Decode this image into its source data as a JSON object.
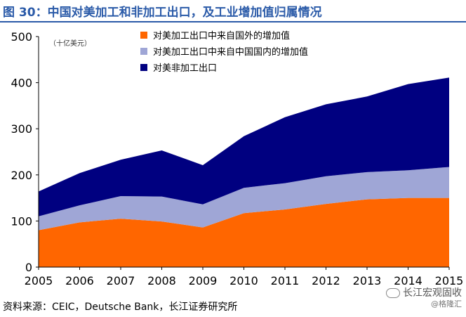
{
  "page": {
    "title": "图 30：中国对美加工和非加工出口，及工业增加值归属情况",
    "source": "资料来源：CEIC，Deutsche Bank，长江证券研究所",
    "watermark": {
      "main": "长江宏观固收",
      "sub": "@格隆汇"
    }
  },
  "chart_data": {
    "type": "area",
    "stacked": true,
    "title": "",
    "unit_label": "（十亿美元）",
    "xlabel": "",
    "ylabel": "",
    "ylim": [
      0,
      500
    ],
    "yticks": [
      0,
      100,
      200,
      300,
      400,
      500
    ],
    "x": [
      2005,
      2006,
      2007,
      2008,
      2009,
      2010,
      2011,
      2012,
      2013,
      2014,
      2015
    ],
    "legend_position": "top-left",
    "grid": false,
    "series": [
      {
        "name": "对美加工出口中来自国外的增加值",
        "color": "#ff6600",
        "values": [
          80,
          97,
          105,
          99,
          86,
          117,
          125,
          137,
          147,
          150,
          150
        ]
      },
      {
        "name": "对美加工出口中来自中国国内的增加值",
        "color": "#9fa6d6",
        "values": [
          30,
          37,
          49,
          54,
          50,
          55,
          57,
          60,
          59,
          60,
          67
        ]
      },
      {
        "name": "对美非加工出口",
        "color": "#000080",
        "values": [
          54,
          70,
          79,
          100,
          85,
          112,
          143,
          156,
          164,
          187,
          194
        ]
      }
    ]
  }
}
